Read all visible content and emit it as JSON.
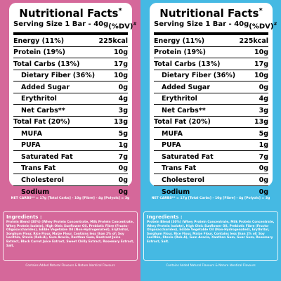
{
  "colors": {
    "left_bg": "#d5689a",
    "right_bg": "#45b9e3",
    "card": "#ffffff"
  },
  "panels": [
    {
      "title": "Nutritional Facts",
      "title_mark": "*",
      "serving_left": "Serving Size 1 Bar - 40g",
      "serving_right": "(%DV)",
      "serving_mark": "#",
      "rows": [
        {
          "label": "Energy (11%)",
          "value": "225kcal"
        },
        {
          "label": "Protein (19%)",
          "value": "10g"
        },
        {
          "label": "Total Carbs (13%)",
          "value": "17g"
        },
        {
          "label": "Dietary Fiber (36%)",
          "value": "10g"
        },
        {
          "label": "Added Sugar",
          "value": "0g"
        },
        {
          "label": "Erythritol",
          "value": "4g"
        },
        {
          "label": "Net Carbs**",
          "value": "3g"
        },
        {
          "label": "Total Fat (20%)",
          "value": "13g"
        },
        {
          "label": "MUFA",
          "value": "5g"
        },
        {
          "label": "PUFA",
          "value": "1g"
        },
        {
          "label": "Saturated Fat",
          "value": "7g"
        },
        {
          "label": "Trans Fat",
          "value": "0g"
        },
        {
          "label": "Cholesterol",
          "value": "0g"
        },
        {
          "label": "Sodium",
          "value": "0g"
        }
      ],
      "net_carbs_line": "NET CARBS** = 17g [Total Carbs] - 10g [Fibre] - 4g [Polyols] = 3g",
      "ingredients_heading": "Ingredients :",
      "ingredients_text": "Protein Blend (30%) (Whey Protein Concentrate, Milk Protein Concentrate, Whey Protein Isolate), High Oleic Sunflower Oil, Prebiotic Fibre (Fructo-Oligosaccharides), Edible Vegetable Oil (Non-Hydrogenated), Erythritol, Sorghum Flour, Rice Flour, Maize Flour. Contains less than 2% of: Soy Lecithin, Stevia (Reb-A), Gum Acacia, Xanthan Gum, Beetroot Juice Extract, Black Carrot Juice Extract, Sweet Chilly Extract, Rosemary Extract, Salt.",
      "footer": "Contains Added Natural Flavours & Nature Identical Flavours"
    },
    {
      "title": "Nutritional Facts",
      "title_mark": "*",
      "serving_left": "Serving Size 1 Bar - 40g",
      "serving_right": "(%DV)",
      "serving_mark": "#",
      "rows": [
        {
          "label": "Energy (11%)",
          "value": "225kcal"
        },
        {
          "label": "Protein (19%)",
          "value": "10g"
        },
        {
          "label": "Total Carbs (13%)",
          "value": "17g"
        },
        {
          "label": "Dietary Fiber (36%)",
          "value": "10g"
        },
        {
          "label": "Added Sugar",
          "value": "0g"
        },
        {
          "label": "Erythritol",
          "value": "4g"
        },
        {
          "label": "Net Carbs**",
          "value": "3g"
        },
        {
          "label": "Total Fat (20%)",
          "value": "13g"
        },
        {
          "label": "MUFA",
          "value": "5g"
        },
        {
          "label": "PUFA",
          "value": "1g"
        },
        {
          "label": "Saturated Fat",
          "value": "7g"
        },
        {
          "label": "Trans Fat",
          "value": "0g"
        },
        {
          "label": "Cholesterol",
          "value": "0g"
        },
        {
          "label": "Sodium",
          "value": "0g"
        }
      ],
      "net_carbs_line": "NET CARBS** = 17g [Total Carbs] - 10g [Fibre] - 4g [Polyols] = 3g",
      "ingredients_heading": "Ingredients :",
      "ingredients_text": "Protein Blend (30%) (Whey Protein Concentrate, Milk Protein Concentrate, Whey Protein Isolate), High Oleic Sunflower Oil, Prebiotic Fibre (Fructo-Oligosaccharides), Edible Vegetable Oil (Non-Hydrogenated), Erythritol, Sorghum Flour, Rice Flour, Maize Flour. Contains less than 2% of: Soy Lecithin, Stevia (Reb-A), Gum Acacia, Xanthan Gum, Guar Gum, Rosemary Extract, Salt.",
      "footer": "Contains Added Natural Flavours & Nature Identical Flavours"
    }
  ]
}
